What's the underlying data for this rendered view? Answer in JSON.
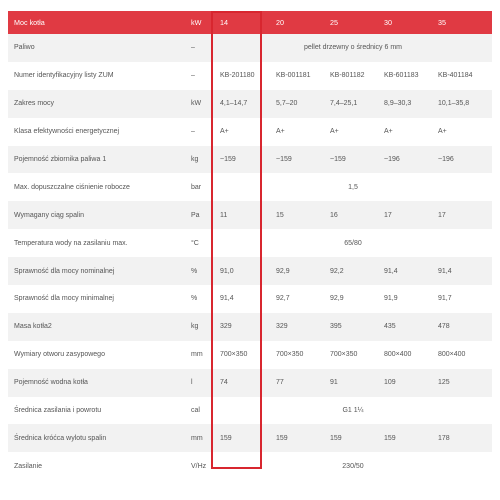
{
  "table": {
    "header": [
      "Moc kotła",
      "kW",
      "14",
      "20",
      "25",
      "30",
      "35"
    ],
    "rows": [
      {
        "label": "Paliwo",
        "unit": "–",
        "merged": "pellet drzewny o średnicy 6 mm"
      },
      {
        "label": "Numer identyfikacyjny listy ZUM",
        "unit": "–",
        "values": [
          "KB-201180",
          "KB-001181",
          "KB-801182",
          "KB-601183",
          "KB-401184"
        ]
      },
      {
        "label": "Zakres mocy",
        "unit": "kW",
        "values": [
          "4,1–14,7",
          "5,7–20",
          "7,4–25,1",
          "8,9–30,3",
          "10,1–35,8"
        ]
      },
      {
        "label": "Klasa efektywności energetycznej",
        "unit": "–",
        "values": [
          "A+",
          "A+",
          "A+",
          "A+",
          "A+"
        ]
      },
      {
        "label": "Pojemność zbiornika paliwa 1",
        "unit": "kg",
        "values": [
          "~159",
          "~159",
          "~159",
          "~196",
          "~196"
        ]
      },
      {
        "label": "Max. dopuszczalne ciśnienie robocze",
        "unit": "bar",
        "merged": "1,5"
      },
      {
        "label": "Wymagany ciąg spalin",
        "unit": "Pa",
        "values": [
          "11",
          "15",
          "16",
          "17",
          "17"
        ]
      },
      {
        "label": "Temperatura wody na zasilaniu max.",
        "unit": "°C",
        "merged": "65/80"
      },
      {
        "label": "Sprawność dla mocy nominalnej",
        "unit": "%",
        "values": [
          "91,0",
          "92,9",
          "92,2",
          "91,4",
          "91,4"
        ]
      },
      {
        "label": "Sprawność dla mocy minimalnej",
        "unit": "%",
        "values": [
          "91,4",
          "92,7",
          "92,9",
          "91,9",
          "91,7"
        ]
      },
      {
        "label": "Masa kotła2",
        "unit": "kg",
        "values": [
          "329",
          "329",
          "395",
          "435",
          "478"
        ]
      },
      {
        "label": "Wymiary otworu zasypowego",
        "unit": "mm",
        "values": [
          "700×350",
          "700×350",
          "700×350",
          "800×400",
          "800×400"
        ]
      },
      {
        "label": "Pojemność wodna kotła",
        "unit": "l",
        "values": [
          "74",
          "77",
          "91",
          "109",
          "125"
        ]
      },
      {
        "label": "Średnica zasilania i powrotu",
        "unit": "cal",
        "merged": "G1 1¼"
      },
      {
        "label": "Średnica króćca wylotu spalin",
        "unit": "mm",
        "values": [
          "159",
          "159",
          "159",
          "159",
          "178"
        ]
      },
      {
        "label": "Zasilanie",
        "unit": "V/Hz",
        "merged": "230/50"
      }
    ]
  },
  "colors": {
    "header_bg": "#e03a43",
    "highlight": "#d8262f",
    "stripe": "#f2f2f2",
    "text": "#555555"
  }
}
